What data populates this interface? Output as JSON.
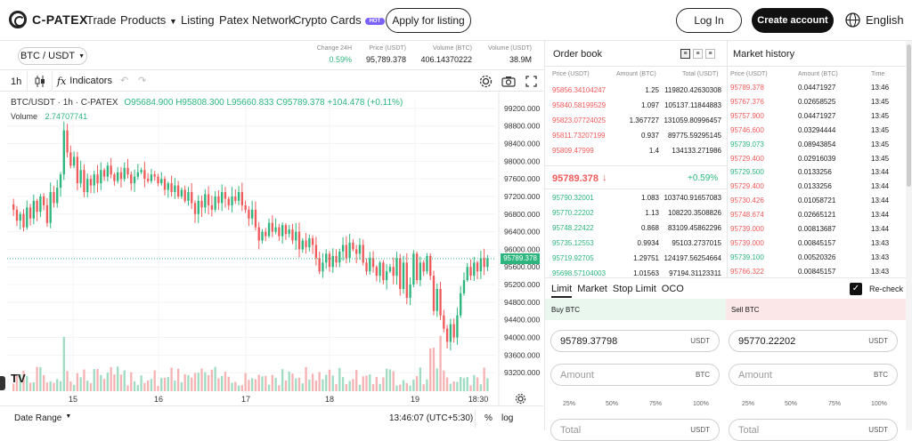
{
  "brand": {
    "name": "C-PATEX"
  },
  "nav": {
    "trade": "Trade",
    "products": "Products",
    "listing": "Listing",
    "patex_network": "Patex Network",
    "crypto_cards": "Crypto Cards",
    "hot": "HOT",
    "apply": "Apply for listing",
    "login": "Log In",
    "create": "Create account",
    "language": "English"
  },
  "ticker": {
    "pair": "BTC / USDT",
    "change_label": "Change 24H",
    "change": "0.59%",
    "price_label": "Price (USDT)",
    "price": "95,789.378",
    "vol_btc_label": "Volume (BTC)",
    "vol_btc": "406.14370222",
    "vol_usdt_label": "Volume (USDT)",
    "vol_usdt": "38.9M"
  },
  "chart_toolbar": {
    "interval": "1h",
    "indicators": "Indicators"
  },
  "chart_legend": {
    "title": "BTC/USDT · 1h · C-PATEX",
    "o": "O95684.900",
    "h": "H95808.300",
    "l": "L95660.833",
    "c": "C95789.378",
    "chg": "+104.478 (+0.11%)",
    "vol_label": "Volume",
    "vol": "2.74707741",
    "last": "95789.378"
  },
  "chart_footer": {
    "date_range": "Date Range",
    "time": "13:46:07 (UTC+5:30)",
    "pct": "%",
    "log": "log"
  },
  "chart_data": {
    "type": "candlestick",
    "y_ticks": [
      "99200.000",
      "98800.000",
      "98400.000",
      "98000.000",
      "97600.000",
      "97200.000",
      "96800.000",
      "96400.000",
      "96000.000",
      "95600.000",
      "95200.000",
      "94800.000",
      "94400.000",
      "94000.000",
      "93600.000",
      "93200.000"
    ],
    "x_ticks": [
      "15",
      "16",
      "17",
      "18",
      "19",
      "18:30"
    ],
    "ylim": [
      92900,
      99400
    ],
    "closes": [
      96900,
      96650,
      96800,
      96500,
      96950,
      96700,
      97100,
      96850,
      97200,
      97000,
      96600,
      97300,
      97050,
      97400,
      97700,
      98700,
      98200,
      97900,
      98100,
      97500,
      97800,
      97300,
      97600,
      97450,
      97700,
      97500,
      97800,
      97650,
      97900,
      97700,
      97550,
      97750,
      97600,
      97850,
      97700,
      97500,
      97650,
      97750,
      97800,
      97600,
      97550,
      97700,
      97650,
      97500,
      97600,
      97350,
      97500,
      97300,
      97450,
      97200,
      97350,
      97100,
      97300,
      97050,
      96800,
      97100,
      96950,
      97250,
      97000,
      96900,
      97200,
      97050,
      97300,
      97150,
      97000,
      97200,
      97100,
      97300,
      97000,
      96900,
      96700,
      96900,
      96500,
      96200,
      96400,
      96300,
      96600,
      96400,
      96500,
      96300,
      96550,
      96350,
      96450,
      96200,
      96400,
      96000,
      96200,
      96050,
      96250,
      96100,
      95800,
      95500,
      95700,
      95900,
      95600,
      95850,
      95700,
      95950,
      96100,
      95800,
      96150,
      96000,
      95900,
      96100,
      95700,
      95500,
      95800,
      95600,
      95400,
      95700,
      95300,
      95500,
      95600,
      95400,
      95800,
      95100,
      95700,
      94900,
      95200,
      95900,
      95300,
      95700,
      95500,
      95850,
      95400,
      94600,
      95100,
      94500,
      94200,
      93900,
      94300,
      94000,
      94500,
      95000,
      95300,
      95600,
      95400,
      95700,
      95500,
      95800,
      95600,
      95789
    ]
  },
  "orderbook": {
    "title": "Order book",
    "h_price": "Price (USDT)",
    "h_amount": "Amount (BTC)",
    "h_total": "Total (USDT)",
    "asks": [
      [
        "95856.34104247",
        "1.25",
        "119820.42630308"
      ],
      [
        "95840.58199529",
        "1.097",
        "105137.11844883"
      ],
      [
        "95823.07724025",
        "1.367727",
        "131059.80996457"
      ],
      [
        "95811.73207199",
        "0.937",
        "89775.59295145"
      ],
      [
        "95809.47999",
        "1.4",
        "134133.271986"
      ]
    ],
    "mid": "95789.378",
    "mid_arrow": "↓",
    "mid_change": "+0.59%",
    "bids": [
      [
        "95790.32001",
        "1.083",
        "103740.91657083"
      ],
      [
        "95770.22202",
        "1.13",
        "108220.3508826"
      ],
      [
        "95748.22422",
        "0.868",
        "83109.45862296"
      ],
      [
        "95735.12553",
        "0.9934",
        "95103.2737015"
      ],
      [
        "95719.92705",
        "1.29751",
        "124197.56254664"
      ],
      [
        "95698.57104003",
        "1.01563",
        "97194.31123311"
      ]
    ]
  },
  "history": {
    "title": "Market history",
    "h_price": "Price (USDT)",
    "h_amount": "Amount (BTC)",
    "h_time": "Time",
    "rows": [
      [
        "95789.378",
        "0.04471927",
        "13:46",
        "r"
      ],
      [
        "95767.376",
        "0.02658525",
        "13:45",
        "r"
      ],
      [
        "95757.900",
        "0.04471927",
        "13:45",
        "r"
      ],
      [
        "95746.600",
        "0.03294444",
        "13:45",
        "r"
      ],
      [
        "95739.073",
        "0.08943854",
        "13:45",
        "g"
      ],
      [
        "95729.400",
        "0.02916039",
        "13:45",
        "r"
      ],
      [
        "95729.500",
        "0.0133256",
        "13:44",
        "g"
      ],
      [
        "95729.400",
        "0.0133256",
        "13:44",
        "r"
      ],
      [
        "95730.426",
        "0.01058721",
        "13:44",
        "r"
      ],
      [
        "95748.674",
        "0.02665121",
        "13:44",
        "r"
      ],
      [
        "95739.000",
        "0.00813687",
        "13:44",
        "r"
      ],
      [
        "95739.000",
        "0.00845157",
        "13:43",
        "r"
      ],
      [
        "95739.100",
        "0.00520326",
        "13:43",
        "g"
      ],
      [
        "95766.322",
        "0.00845157",
        "13:43",
        "r"
      ]
    ]
  },
  "form": {
    "tabs": [
      "Limit",
      "Market",
      "Stop Limit",
      "OCO"
    ],
    "recheck": "Re-check",
    "buy_label": "Buy BTC",
    "sell_label": "Sell BTC",
    "buy_price": "95789.37798",
    "sell_price": "95770.22202",
    "usdt": "USDT",
    "btc": "BTC",
    "amount_ph": "Amount",
    "total_ph": "Total",
    "pcts": [
      "25%",
      "50%",
      "75%",
      "100%"
    ]
  }
}
